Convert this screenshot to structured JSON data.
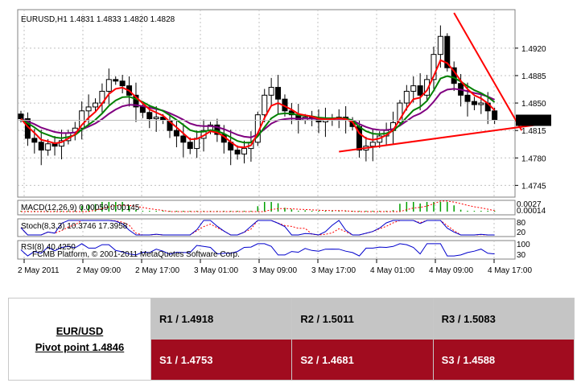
{
  "colors": {
    "candle": "#000000",
    "ma_fast": "#ff0000",
    "ma_mid": "#008000",
    "ma_slow": "#800080",
    "trendline": "#ff0000",
    "table_resistance": "#c5c5c5",
    "table_support": "#a10c1f"
  },
  "chart_data": {
    "type": "candlestick",
    "title": "EURUSD,H1  1.4831 1.4833 1.4820 1.4828",
    "current_price_label": "1.4828",
    "ylim": [
      1.473,
      1.4965
    ],
    "y_ticks": [
      "1.4920",
      "1.4885",
      "1.4850",
      "1.4815",
      "1.4780",
      "1.4745"
    ],
    "x_ticks": [
      "2 May 2011",
      "2 May 09:00",
      "2 May 17:00",
      "3 May 01:00",
      "3 May 09:00",
      "3 May 17:00",
      "4 May 01:00",
      "4 May 09:00",
      "4 May 17:00"
    ],
    "close": [
      1.483,
      1.4805,
      1.48,
      1.479,
      1.4798,
      1.4795,
      1.4802,
      1.4812,
      1.4818,
      1.484,
      1.4845,
      1.485,
      1.4865,
      1.488,
      1.4878,
      1.4872,
      1.486,
      1.4845,
      1.4838,
      1.483,
      1.4832,
      1.4828,
      1.4815,
      1.4808,
      1.48,
      1.4792,
      1.4805,
      1.4815,
      1.4822,
      1.481,
      1.48,
      1.479,
      1.4785,
      1.4792,
      1.48,
      1.4835,
      1.486,
      1.487,
      1.4855,
      1.484,
      1.4835,
      1.4828,
      1.4832,
      1.483,
      1.4826,
      1.4828,
      1.483,
      1.4832,
      1.4828,
      1.482,
      1.479,
      1.4795,
      1.48,
      1.4808,
      1.4815,
      1.4825,
      1.485,
      1.4865,
      1.4872,
      1.486,
      1.488,
      1.4912,
      1.4935,
      1.4895,
      1.4875,
      1.486,
      1.4852,
      1.4848,
      1.485,
      1.484,
      1.4828
    ],
    "trendlines": [
      {
        "name": "support",
        "points": [
          [
            47,
            1.4788
          ],
          [
            76,
            1.4822
          ]
        ]
      },
      {
        "name": "resistance",
        "points": [
          [
            64,
            1.4965
          ],
          [
            74,
            1.4815
          ]
        ]
      }
    ],
    "indicators": {
      "moving_averages": [
        "fast",
        "mid",
        "slow"
      ],
      "macd": {
        "label": "MACD(12,26,9) 0.00059 0.00145",
        "scale_labels": [
          "0.0027",
          "0.00014"
        ]
      },
      "stoch": {
        "label": "Stoch(8,3,3) 10.3746 17.3958",
        "scale_labels": [
          "80",
          "20"
        ]
      },
      "rsi": {
        "label": "RSI(8) 40.4250",
        "scale_labels": [
          "100",
          "30"
        ]
      }
    },
    "watermark": "FCMB Platform, © 2001-2011 MetaQuotes Software Corp."
  },
  "pivot_table": {
    "pair": "EUR/USD",
    "pivot": "Pivot point 1.4846",
    "resistance": [
      "R1 / 1.4918",
      "R2 / 1.5011",
      "R3 / 1.5083"
    ],
    "support": [
      "S1 / 1.4753",
      "S2 / 1.4681",
      "S3 / 1.4588"
    ]
  }
}
